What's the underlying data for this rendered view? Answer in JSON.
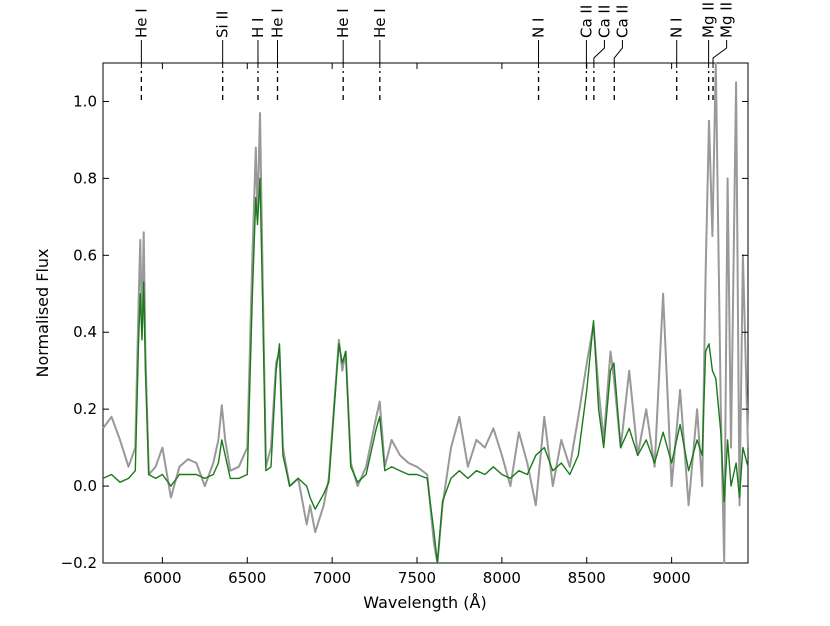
{
  "chart_data": {
    "type": "line",
    "xlabel": "Wavelength (Å)",
    "ylabel": "Normalised Flux",
    "xlim": [
      5650,
      9450
    ],
    "ylim": [
      -0.2,
      1.1
    ],
    "xticks": [
      6000,
      6500,
      7000,
      7500,
      8000,
      8500,
      9000
    ],
    "xtick_labels": [
      "6000",
      "6500",
      "7000",
      "7500",
      "8000",
      "8500",
      "9000"
    ],
    "yticks": [
      -0.2,
      0.0,
      0.2,
      0.4,
      0.6,
      0.8,
      1.0
    ],
    "ytick_labels": [
      "−0.2",
      "0.0",
      "0.2",
      "0.4",
      "0.6",
      "0.8",
      "1.0"
    ],
    "grid": false,
    "line_ids": [
      {
        "label": "He I",
        "wavelength": 5876
      },
      {
        "label": "Si II",
        "wavelength": 6355
      },
      {
        "label": "H I",
        "wavelength": 6563
      },
      {
        "label": "He I",
        "wavelength": 6678
      },
      {
        "label": "He I",
        "wavelength": 7065
      },
      {
        "label": "He I",
        "wavelength": 7281
      },
      {
        "label": "N I",
        "wavelength": 8216
      },
      {
        "label": "Ca II",
        "wavelength": 8498
      },
      {
        "label": "Ca II",
        "wavelength": 8542
      },
      {
        "label": "Ca II",
        "wavelength": 8662
      },
      {
        "label": "N I",
        "wavelength": 9030
      },
      {
        "label": "Mg II",
        "wavelength": 9218
      },
      {
        "label": "Mg II",
        "wavelength": 9244
      }
    ],
    "series": [
      {
        "color": "#999999",
        "points": [
          [
            5650,
            0.15
          ],
          [
            5700,
            0.18
          ],
          [
            5750,
            0.12
          ],
          [
            5800,
            0.05
          ],
          [
            5840,
            0.1
          ],
          [
            5860,
            0.48
          ],
          [
            5870,
            0.64
          ],
          [
            5880,
            0.4
          ],
          [
            5890,
            0.66
          ],
          [
            5900,
            0.35
          ],
          [
            5920,
            0.03
          ],
          [
            5960,
            0.05
          ],
          [
            6000,
            0.1
          ],
          [
            6050,
            -0.03
          ],
          [
            6100,
            0.05
          ],
          [
            6150,
            0.07
          ],
          [
            6200,
            0.06
          ],
          [
            6250,
            0.0
          ],
          [
            6300,
            0.06
          ],
          [
            6330,
            0.12
          ],
          [
            6350,
            0.21
          ],
          [
            6370,
            0.12
          ],
          [
            6400,
            0.04
          ],
          [
            6450,
            0.05
          ],
          [
            6500,
            0.1
          ],
          [
            6530,
            0.6
          ],
          [
            6550,
            0.88
          ],
          [
            6560,
            0.7
          ],
          [
            6575,
            0.97
          ],
          [
            6590,
            0.55
          ],
          [
            6610,
            0.05
          ],
          [
            6640,
            0.1
          ],
          [
            6670,
            0.32
          ],
          [
            6690,
            0.35
          ],
          [
            6710,
            0.1
          ],
          [
            6750,
            0.0
          ],
          [
            6800,
            0.02
          ],
          [
            6850,
            -0.1
          ],
          [
            6870,
            -0.05
          ],
          [
            6900,
            -0.12
          ],
          [
            6950,
            -0.05
          ],
          [
            6980,
            0.02
          ],
          [
            7040,
            0.38
          ],
          [
            7060,
            0.3
          ],
          [
            7080,
            0.35
          ],
          [
            7110,
            0.06
          ],
          [
            7150,
            0.0
          ],
          [
            7200,
            0.05
          ],
          [
            7260,
            0.18
          ],
          [
            7280,
            0.22
          ],
          [
            7310,
            0.05
          ],
          [
            7350,
            0.12
          ],
          [
            7400,
            0.08
          ],
          [
            7450,
            0.06
          ],
          [
            7500,
            0.05
          ],
          [
            7560,
            0.03
          ],
          [
            7600,
            -0.15
          ],
          [
            7620,
            -0.2
          ],
          [
            7650,
            -0.05
          ],
          [
            7700,
            0.1
          ],
          [
            7750,
            0.18
          ],
          [
            7800,
            0.05
          ],
          [
            7850,
            0.12
          ],
          [
            7900,
            0.1
          ],
          [
            7950,
            0.15
          ],
          [
            8000,
            0.08
          ],
          [
            8050,
            0.0
          ],
          [
            8100,
            0.14
          ],
          [
            8150,
            0.06
          ],
          [
            8200,
            -0.05
          ],
          [
            8250,
            0.18
          ],
          [
            8300,
            0.0
          ],
          [
            8350,
            0.12
          ],
          [
            8400,
            0.05
          ],
          [
            8450,
            0.18
          ],
          [
            8500,
            0.32
          ],
          [
            8540,
            0.42
          ],
          [
            8570,
            0.25
          ],
          [
            8600,
            0.12
          ],
          [
            8640,
            0.35
          ],
          [
            8660,
            0.28
          ],
          [
            8700,
            0.1
          ],
          [
            8750,
            0.3
          ],
          [
            8800,
            0.08
          ],
          [
            8850,
            0.2
          ],
          [
            8900,
            0.05
          ],
          [
            8950,
            0.5
          ],
          [
            9000,
            0.0
          ],
          [
            9050,
            0.25
          ],
          [
            9100,
            -0.05
          ],
          [
            9150,
            0.2
          ],
          [
            9180,
            0.0
          ],
          [
            9200,
            0.55
          ],
          [
            9220,
            0.95
          ],
          [
            9240,
            0.65
          ],
          [
            9260,
            1.1
          ],
          [
            9290,
            0.2
          ],
          [
            9310,
            -0.2
          ],
          [
            9330,
            0.8
          ],
          [
            9350,
            0.1
          ],
          [
            9380,
            1.05
          ],
          [
            9400,
            -0.05
          ],
          [
            9420,
            0.6
          ],
          [
            9450,
            0.1
          ]
        ]
      },
      {
        "color": "#1a7a1a",
        "points": [
          [
            5650,
            0.02
          ],
          [
            5700,
            0.03
          ],
          [
            5750,
            0.01
          ],
          [
            5800,
            0.02
          ],
          [
            5840,
            0.04
          ],
          [
            5860,
            0.38
          ],
          [
            5870,
            0.5
          ],
          [
            5880,
            0.38
          ],
          [
            5890,
            0.53
          ],
          [
            5900,
            0.3
          ],
          [
            5920,
            0.03
          ],
          [
            5960,
            0.02
          ],
          [
            6000,
            0.03
          ],
          [
            6050,
            0.0
          ],
          [
            6100,
            0.03
          ],
          [
            6150,
            0.03
          ],
          [
            6200,
            0.03
          ],
          [
            6250,
            0.02
          ],
          [
            6300,
            0.03
          ],
          [
            6330,
            0.06
          ],
          [
            6350,
            0.12
          ],
          [
            6370,
            0.08
          ],
          [
            6400,
            0.02
          ],
          [
            6450,
            0.02
          ],
          [
            6500,
            0.03
          ],
          [
            6530,
            0.5
          ],
          [
            6550,
            0.75
          ],
          [
            6560,
            0.68
          ],
          [
            6575,
            0.8
          ],
          [
            6590,
            0.48
          ],
          [
            6610,
            0.04
          ],
          [
            6640,
            0.05
          ],
          [
            6670,
            0.3
          ],
          [
            6690,
            0.37
          ],
          [
            6710,
            0.08
          ],
          [
            6750,
            0.0
          ],
          [
            6800,
            0.02
          ],
          [
            6850,
            0.0
          ],
          [
            6870,
            -0.03
          ],
          [
            6900,
            -0.06
          ],
          [
            6950,
            -0.02
          ],
          [
            6980,
            0.01
          ],
          [
            7040,
            0.37
          ],
          [
            7060,
            0.32
          ],
          [
            7080,
            0.35
          ],
          [
            7110,
            0.05
          ],
          [
            7150,
            0.01
          ],
          [
            7200,
            0.03
          ],
          [
            7260,
            0.15
          ],
          [
            7280,
            0.18
          ],
          [
            7310,
            0.04
          ],
          [
            7350,
            0.05
          ],
          [
            7400,
            0.04
          ],
          [
            7450,
            0.03
          ],
          [
            7500,
            0.03
          ],
          [
            7560,
            0.02
          ],
          [
            7600,
            -0.12
          ],
          [
            7620,
            -0.2
          ],
          [
            7650,
            -0.04
          ],
          [
            7700,
            0.02
          ],
          [
            7750,
            0.04
          ],
          [
            7800,
            0.02
          ],
          [
            7850,
            0.04
          ],
          [
            7900,
            0.03
          ],
          [
            7950,
            0.05
          ],
          [
            8000,
            0.03
          ],
          [
            8050,
            0.02
          ],
          [
            8100,
            0.04
          ],
          [
            8150,
            0.03
          ],
          [
            8200,
            0.08
          ],
          [
            8250,
            0.1
          ],
          [
            8300,
            0.04
          ],
          [
            8350,
            0.06
          ],
          [
            8400,
            0.03
          ],
          [
            8450,
            0.08
          ],
          [
            8500,
            0.25
          ],
          [
            8540,
            0.43
          ],
          [
            8570,
            0.2
          ],
          [
            8600,
            0.1
          ],
          [
            8640,
            0.3
          ],
          [
            8660,
            0.32
          ],
          [
            8700,
            0.1
          ],
          [
            8750,
            0.15
          ],
          [
            8800,
            0.08
          ],
          [
            8850,
            0.12
          ],
          [
            8900,
            0.06
          ],
          [
            8950,
            0.14
          ],
          [
            9000,
            0.06
          ],
          [
            9050,
            0.16
          ],
          [
            9100,
            0.04
          ],
          [
            9150,
            0.12
          ],
          [
            9180,
            0.08
          ],
          [
            9200,
            0.35
          ],
          [
            9220,
            0.37
          ],
          [
            9240,
            0.3
          ],
          [
            9260,
            0.28
          ],
          [
            9290,
            0.14
          ],
          [
            9310,
            -0.04
          ],
          [
            9330,
            0.12
          ],
          [
            9350,
            0.0
          ],
          [
            9380,
            0.06
          ],
          [
            9400,
            -0.03
          ],
          [
            9420,
            0.1
          ],
          [
            9450,
            0.05
          ]
        ]
      }
    ]
  }
}
